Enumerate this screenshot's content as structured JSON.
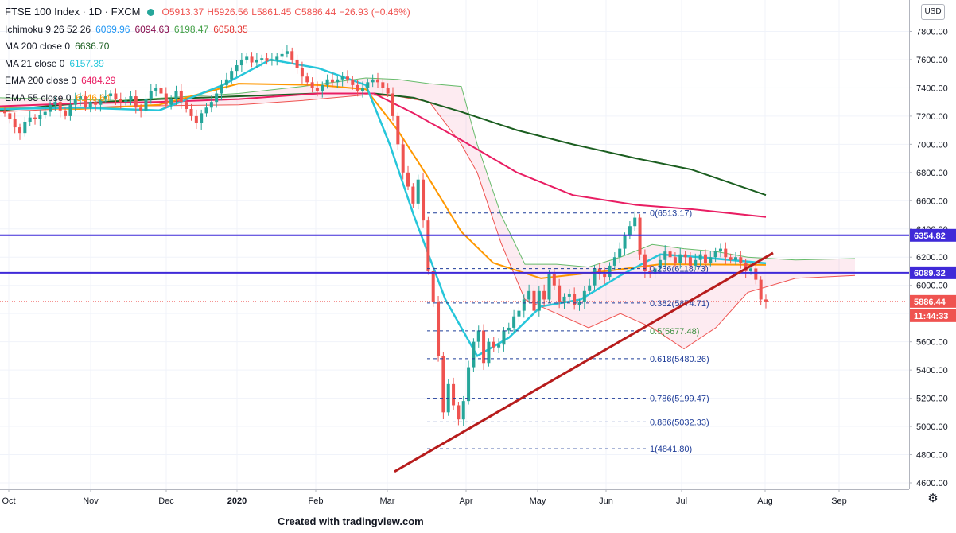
{
  "header": {
    "symbol": "FTSE 100 Index · 1D · FXCM",
    "ohlc": {
      "o": "O5913.37",
      "h": "H5926.56",
      "l": "L5861.45",
      "c": "C5886.44",
      "chg": "−26.93 (−0.46%)"
    }
  },
  "indicators": [
    {
      "label": "Ichimoku 9 26 52 26",
      "values": [
        "6069.96",
        "6094.63",
        "6198.47",
        "6058.35"
      ],
      "colors": [
        "#2196f3",
        "#880e4f",
        "#43a047",
        "#e53935"
      ]
    },
    {
      "label": "MA 200 close 0",
      "values": [
        "6636.70"
      ],
      "colors": [
        "#1b5e20"
      ]
    },
    {
      "label": "MA 21 close 0",
      "values": [
        "6157.39"
      ],
      "colors": [
        "#26c6da"
      ]
    },
    {
      "label": "EMA 200 close 0",
      "values": [
        "6484.29"
      ],
      "colors": [
        "#e91e63"
      ]
    },
    {
      "label": "EMA 55 close 0",
      "values": [
        "6146.64"
      ],
      "colors": [
        "#ff9800"
      ]
    }
  ],
  "currency": "USD",
  "footer": "Created with tradingview.com",
  "colors": {
    "up": "#26a69a",
    "down": "#ef5350",
    "hline": "#3f2ad8",
    "trend": "#b71c1c",
    "fib": "#1f3d99"
  },
  "chart_data": {
    "type": "line",
    "y_axis": {
      "min": 4500,
      "max": 8090,
      "ticks": [
        4600,
        4800,
        5000,
        5200,
        5400,
        5600,
        5800,
        6000,
        6200,
        6400,
        6600,
        6800,
        7000,
        7200,
        7400,
        7600,
        7800
      ]
    },
    "x_labels": [
      "Oct",
      "Nov",
      "Dec",
      "2020",
      "Feb",
      "Mar",
      "Apr",
      "May",
      "Jun",
      "Jul",
      "Aug",
      "Sep"
    ],
    "horizontal_lines": [
      {
        "value": 6354.82,
        "label": "6354.82"
      },
      {
        "value": 6089.32,
        "label": "6089.32"
      }
    ],
    "last_price": {
      "value": 5886.44,
      "label": "5886.44",
      "countdown": "11:44:33"
    },
    "fibonacci": [
      {
        "ratio": "0",
        "value": 6513.17,
        "label": "0(6513.17)"
      },
      {
        "ratio": "0.236",
        "value": 6118.73,
        "label": "0.236(6118.73)"
      },
      {
        "ratio": "0.382",
        "value": 5874.71,
        "label": "0.382(5874.71)"
      },
      {
        "ratio": "0.5",
        "value": 5677.48,
        "label": "0.5(5677.48)"
      },
      {
        "ratio": "0.618",
        "value": 5480.26,
        "label": "0.618(5480.26)"
      },
      {
        "ratio": "0.786",
        "value": 5199.47,
        "label": "0.786(5199.47)"
      },
      {
        "ratio": "0.886",
        "value": 5032.33,
        "label": "0.886(5032.33)"
      },
      {
        "ratio": "1",
        "value": 4841.8,
        "label": "1(4841.80)"
      }
    ],
    "trendline": {
      "from": {
        "x": "Mar 10",
        "y": 4680
      },
      "to": {
        "x": "Jul 29",
        "y": 6230
      }
    },
    "series": [
      {
        "name": "FTSE 100 Index",
        "kind": "candles",
        "closes": [
          7220,
          7180,
          7120,
          7080,
          7160,
          7190,
          7180,
          7210,
          7230,
          7280,
          7300,
          7240,
          7200,
          7280,
          7320,
          7340,
          7260,
          7300,
          7280,
          7320,
          7340,
          7360,
          7320,
          7300,
          7310,
          7340,
          7260,
          7240,
          7320,
          7380,
          7400,
          7360,
          7280,
          7320,
          7380,
          7300,
          7250,
          7200,
          7150,
          7220,
          7260,
          7300,
          7360,
          7420,
          7460,
          7520,
          7560,
          7600,
          7620,
          7580,
          7600,
          7610,
          7590,
          7600,
          7620,
          7640,
          7660,
          7600,
          7540,
          7480,
          7440,
          7400,
          7380,
          7420,
          7460,
          7440,
          7460,
          7480,
          7460,
          7420,
          7380,
          7400,
          7440,
          7460,
          7440,
          7400,
          7360,
          7200,
          7000,
          6800,
          6700,
          6580,
          6750,
          6460,
          6100,
          5880,
          5500,
          5100,
          5300,
          5150,
          5050,
          5180,
          5420,
          5600,
          5680,
          5450,
          5600,
          5560,
          5580,
          5680,
          5700,
          5780,
          5820,
          5900,
          5960,
          5820,
          5960,
          5900,
          6080,
          6000,
          5880,
          5920,
          5940,
          5860,
          5880,
          5960,
          6000,
          6120,
          6080,
          6060,
          6140,
          6200,
          6260,
          6350,
          6420,
          6480,
          6220,
          6100,
          6080,
          6120,
          6180,
          6240,
          6200,
          6160,
          6220,
          6200,
          6140,
          6180,
          6220,
          6160,
          6200,
          6240,
          6260,
          6200,
          6180,
          6200,
          6160,
          6100,
          6120,
          6040,
          5900,
          5886
        ]
      },
      {
        "name": "MA 200",
        "kind": "line",
        "color": "#1b5e20",
        "points": [
          [
            0,
            7240
          ],
          [
            100,
            7290
          ],
          [
            200,
            7320
          ],
          [
            300,
            7340
          ],
          [
            400,
            7360
          ],
          [
            470,
            7360
          ],
          [
            520,
            7330
          ],
          [
            580,
            7230
          ],
          [
            650,
            7100
          ],
          [
            720,
            7000
          ],
          [
            800,
            6900
          ],
          [
            870,
            6820
          ],
          [
            963,
            6640
          ]
        ]
      },
      {
        "name": "EMA 200",
        "kind": "line",
        "color": "#e91e63",
        "points": [
          [
            0,
            7270
          ],
          [
            100,
            7290
          ],
          [
            200,
            7300
          ],
          [
            300,
            7320
          ],
          [
            400,
            7360
          ],
          [
            470,
            7360
          ],
          [
            520,
            7220
          ],
          [
            580,
            7030
          ],
          [
            650,
            6800
          ],
          [
            720,
            6640
          ],
          [
            800,
            6570
          ],
          [
            870,
            6540
          ],
          [
            963,
            6485
          ]
        ]
      },
      {
        "name": "EMA 55",
        "kind": "line",
        "color": "#ff9800",
        "points": [
          [
            0,
            7260
          ],
          [
            100,
            7250
          ],
          [
            200,
            7280
          ],
          [
            300,
            7430
          ],
          [
            400,
            7420
          ],
          [
            460,
            7390
          ],
          [
            500,
            7100
          ],
          [
            540,
            6750
          ],
          [
            580,
            6380
          ],
          [
            620,
            6160
          ],
          [
            680,
            6050
          ],
          [
            760,
            6100
          ],
          [
            830,
            6150
          ],
          [
            963,
            6146
          ]
        ]
      },
      {
        "name": "MA 21",
        "kind": "line",
        "color": "#26c6da",
        "points": [
          [
            0,
            7250
          ],
          [
            100,
            7260
          ],
          [
            200,
            7240
          ],
          [
            280,
            7420
          ],
          [
            340,
            7600
          ],
          [
            400,
            7540
          ],
          [
            460,
            7420
          ],
          [
            490,
            7000
          ],
          [
            520,
            6500
          ],
          [
            560,
            5900
          ],
          [
            600,
            5500
          ],
          [
            640,
            5630
          ],
          [
            680,
            5850
          ],
          [
            730,
            5900
          ],
          [
            780,
            6070
          ],
          [
            830,
            6220
          ],
          [
            880,
            6200
          ],
          [
            963,
            6157
          ]
        ]
      }
    ]
  }
}
